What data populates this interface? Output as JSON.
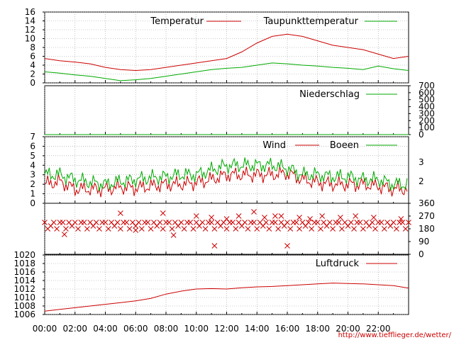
{
  "x_labels": [
    "00:00",
    "02:00",
    "04:00",
    "06:00",
    "08:00",
    "10:00",
    "12:00",
    "14:00",
    "16:00",
    "18:00",
    "20:00",
    "22:00"
  ],
  "credit": "http://www.tiefflieger.de/wetter/",
  "colors": {
    "red": "#cc0000",
    "green": "#00aa00",
    "grid": "#999999",
    "axis": "#000000"
  },
  "panels": [
    {
      "name": "temperature-panel",
      "legend": [
        "Temperatur",
        "Taupunkttemperatur"
      ],
      "left_ticks": [
        "0",
        "2",
        "4",
        "6",
        "8",
        "10",
        "12",
        "14",
        "16"
      ],
      "right_ticks": []
    },
    {
      "name": "precipitation-panel",
      "legend": [
        "Niederschlag"
      ],
      "left_ticks": [],
      "right_ticks": [
        "0",
        "100",
        "200",
        "300",
        "400",
        "500",
        "600",
        "700"
      ]
    },
    {
      "name": "wind-panel",
      "legend": [
        "Wind",
        "Boeen"
      ],
      "left_ticks": [
        "0",
        "1",
        "2",
        "3",
        "4",
        "5",
        "6",
        "7"
      ],
      "right_ticks": [
        "2",
        "3"
      ]
    },
    {
      "name": "wind-direction-panel",
      "legend": [],
      "left_ticks": [],
      "right_ticks": [
        "0",
        "90",
        "180",
        "270",
        "360"
      ]
    },
    {
      "name": "pressure-panel",
      "legend": [
        "Luftdruck"
      ],
      "left_ticks": [
        "1006",
        "1008",
        "1010",
        "1012",
        "1014",
        "1016",
        "1018",
        "1020"
      ],
      "right_ticks": []
    }
  ],
  "chart_data": [
    {
      "type": "line",
      "x": [
        0,
        1,
        2,
        3,
        4,
        5,
        6,
        7,
        8,
        9,
        10,
        11,
        12,
        13,
        14,
        15,
        16,
        17,
        18,
        19,
        20,
        21,
        22,
        23,
        24
      ],
      "series": [
        {
          "name": "Temperatur",
          "color": "#cc0000",
          "values": [
            5.5,
            5.0,
            4.7,
            4.3,
            3.5,
            3.0,
            2.8,
            3.0,
            3.5,
            4.0,
            4.5,
            5.0,
            5.5,
            7.0,
            9.0,
            10.5,
            11.0,
            10.5,
            9.5,
            8.5,
            8.0,
            7.5,
            6.5,
            5.5,
            6.0
          ]
        },
        {
          "name": "Taupunkttemperatur",
          "color": "#00aa00",
          "values": [
            2.5,
            2.2,
            1.8,
            1.5,
            1.0,
            0.5,
            0.7,
            1.0,
            1.5,
            2.0,
            2.5,
            3.0,
            3.3,
            3.5,
            4.0,
            4.5,
            4.3,
            4.0,
            3.8,
            3.5,
            3.3,
            3.0,
            3.8,
            3.2,
            2.8
          ]
        }
      ],
      "ylim": [
        0,
        16
      ],
      "grid": true,
      "legend_position": "top-right"
    },
    {
      "type": "line",
      "x": [
        0,
        24
      ],
      "series": [
        {
          "name": "Niederschlag",
          "color": "#00aa00",
          "values": [
            0,
            0
          ]
        }
      ],
      "ylim": [
        0,
        700
      ],
      "grid": true,
      "legend_position": "top-right"
    },
    {
      "type": "line",
      "x": [
        0,
        1,
        2,
        3,
        4,
        5,
        6,
        7,
        8,
        9,
        10,
        11,
        12,
        13,
        14,
        15,
        16,
        17,
        18,
        19,
        20,
        21,
        22,
        23,
        24
      ],
      "series": [
        {
          "name": "Wind",
          "color": "#cc0000",
          "values": [
            2.0,
            2.3,
            1.5,
            1.5,
            1.5,
            1.7,
            1.6,
            1.8,
            2.0,
            2.0,
            2.2,
            2.5,
            3.0,
            3.0,
            3.0,
            3.0,
            3.2,
            2.5,
            2.2,
            2.0,
            2.0,
            2.0,
            1.8,
            1.5,
            1.5
          ]
        },
        {
          "name": "Boeen",
          "color": "#00aa00",
          "values": [
            3.0,
            3.0,
            2.5,
            2.2,
            2.0,
            2.3,
            2.5,
            2.7,
            2.8,
            3.0,
            3.0,
            3.5,
            4.0,
            4.0,
            4.0,
            4.0,
            3.7,
            3.0,
            3.0,
            2.8,
            2.8,
            2.5,
            2.5,
            2.0,
            2.0
          ]
        }
      ],
      "ylim": [
        0,
        7
      ],
      "right_axis_ticks": [
        2,
        3
      ],
      "grid": true,
      "legend_position": "top-right"
    },
    {
      "type": "scatter",
      "marker": "x",
      "series": [
        {
          "name": "",
          "color": "#cc0000",
          "points": [
            [
              0.0,
              225
            ],
            [
              0.2,
              180
            ],
            [
              0.4,
              200
            ],
            [
              0.6,
              225
            ],
            [
              0.8,
              180
            ],
            [
              1.0,
              225
            ],
            [
              1.2,
              225
            ],
            [
              1.4,
              180
            ],
            [
              1.6,
              225
            ],
            [
              1.8,
              200
            ],
            [
              2.0,
              225
            ],
            [
              2.2,
              180
            ],
            [
              2.4,
              225
            ],
            [
              2.6,
              225
            ],
            [
              2.8,
              180
            ],
            [
              3.0,
              225
            ],
            [
              3.2,
              200
            ],
            [
              3.4,
              225
            ],
            [
              3.6,
              180
            ],
            [
              3.8,
              225
            ],
            [
              4.0,
              225
            ],
            [
              4.2,
              180
            ],
            [
              4.4,
              225
            ],
            [
              4.6,
              200
            ],
            [
              4.8,
              225
            ],
            [
              5.0,
              180
            ],
            [
              5.2,
              225
            ],
            [
              5.4,
              225
            ],
            [
              5.6,
              180
            ],
            [
              5.8,
              225
            ],
            [
              6.0,
              200
            ],
            [
              6.2,
              225
            ],
            [
              6.4,
              180
            ],
            [
              6.6,
              225
            ],
            [
              6.8,
              225
            ],
            [
              7.0,
              180
            ],
            [
              7.2,
              225
            ],
            [
              7.4,
              200
            ],
            [
              7.6,
              225
            ],
            [
              7.8,
              180
            ],
            [
              8.0,
              225
            ],
            [
              8.2,
              225
            ],
            [
              8.4,
              180
            ],
            [
              8.6,
              225
            ],
            [
              8.8,
              200
            ],
            [
              9.0,
              225
            ],
            [
              9.2,
              180
            ],
            [
              9.4,
              225
            ],
            [
              9.6,
              225
            ],
            [
              9.8,
              180
            ],
            [
              10.0,
              225
            ],
            [
              10.2,
              200
            ],
            [
              10.4,
              225
            ],
            [
              10.6,
              180
            ],
            [
              10.8,
              225
            ],
            [
              11.0,
              225
            ],
            [
              11.2,
              180
            ],
            [
              11.4,
              225
            ],
            [
              11.6,
              200
            ],
            [
              11.8,
              225
            ],
            [
              12.0,
              180
            ],
            [
              12.2,
              225
            ],
            [
              12.4,
              225
            ],
            [
              12.6,
              180
            ],
            [
              12.8,
              225
            ],
            [
              13.0,
              200
            ],
            [
              13.2,
              225
            ],
            [
              13.4,
              180
            ],
            [
              13.6,
              225
            ],
            [
              13.8,
              225
            ],
            [
              14.0,
              180
            ],
            [
              14.2,
              225
            ],
            [
              14.4,
              200
            ],
            [
              14.6,
              225
            ],
            [
              14.8,
              180
            ],
            [
              15.0,
              225
            ],
            [
              15.2,
              225
            ],
            [
              15.4,
              180
            ],
            [
              15.6,
              225
            ],
            [
              15.8,
              200
            ],
            [
              16.0,
              225
            ],
            [
              16.2,
              180
            ],
            [
              16.4,
              225
            ],
            [
              16.6,
              225
            ],
            [
              16.8,
              180
            ],
            [
              17.0,
              225
            ],
            [
              17.2,
              200
            ],
            [
              17.4,
              225
            ],
            [
              17.6,
              180
            ],
            [
              17.8,
              225
            ],
            [
              18.0,
              225
            ],
            [
              18.2,
              180
            ],
            [
              18.4,
              225
            ],
            [
              18.6,
              200
            ],
            [
              18.8,
              225
            ],
            [
              19.0,
              180
            ],
            [
              19.2,
              225
            ],
            [
              19.4,
              225
            ],
            [
              19.6,
              180
            ],
            [
              19.8,
              225
            ],
            [
              20.0,
              200
            ],
            [
              20.2,
              225
            ],
            [
              20.4,
              180
            ],
            [
              20.6,
              225
            ],
            [
              20.8,
              225
            ],
            [
              21.0,
              180
            ],
            [
              21.2,
              225
            ],
            [
              21.4,
              200
            ],
            [
              21.6,
              225
            ],
            [
              21.8,
              180
            ],
            [
              22.0,
              225
            ],
            [
              22.2,
              225
            ],
            [
              22.4,
              180
            ],
            [
              22.6,
              225
            ],
            [
              22.8,
              200
            ],
            [
              23.0,
              225
            ],
            [
              23.2,
              180
            ],
            [
              23.4,
              225
            ],
            [
              23.6,
              225
            ],
            [
              23.8,
              180
            ],
            [
              24.0,
              225
            ],
            [
              1.3,
              140
            ],
            [
              5.0,
              290
            ],
            [
              6.0,
              170
            ],
            [
              7.8,
              290
            ],
            [
              8.5,
              135
            ],
            [
              10.0,
              270
            ],
            [
              11.0,
              260
            ],
            [
              11.2,
              60
            ],
            [
              12.0,
              250
            ],
            [
              12.8,
              270
            ],
            [
              13.8,
              300
            ],
            [
              14.5,
              260
            ],
            [
              15.2,
              270
            ],
            [
              15.6,
              270
            ],
            [
              16.0,
              60
            ],
            [
              16.8,
              260
            ],
            [
              17.5,
              250
            ],
            [
              18.3,
              270
            ],
            [
              19.5,
              260
            ],
            [
              20.5,
              270
            ],
            [
              21.7,
              260
            ],
            [
              23.5,
              250
            ]
          ]
        }
      ],
      "ylim": [
        0,
        360
      ],
      "right_axis_ticks": [
        0,
        90,
        180,
        270,
        360
      ],
      "grid": true
    },
    {
      "type": "line",
      "x": [
        0,
        1,
        2,
        3,
        4,
        5,
        6,
        7,
        8,
        9,
        10,
        11,
        12,
        13,
        14,
        15,
        16,
        17,
        18,
        19,
        20,
        21,
        22,
        23,
        24
      ],
      "series": [
        {
          "name": "Luftdruck",
          "color": "#cc0000",
          "values": [
            1006.8,
            1007.2,
            1007.6,
            1008.0,
            1008.4,
            1008.8,
            1009.2,
            1009.8,
            1010.8,
            1011.5,
            1012.0,
            1012.1,
            1012.0,
            1012.3,
            1012.5,
            1012.6,
            1012.8,
            1013.0,
            1013.2,
            1013.4,
            1013.3,
            1013.2,
            1013.0,
            1012.8,
            1012.2
          ]
        }
      ],
      "ylim": [
        1006,
        1020
      ],
      "grid": true,
      "legend_position": "top-right"
    }
  ]
}
